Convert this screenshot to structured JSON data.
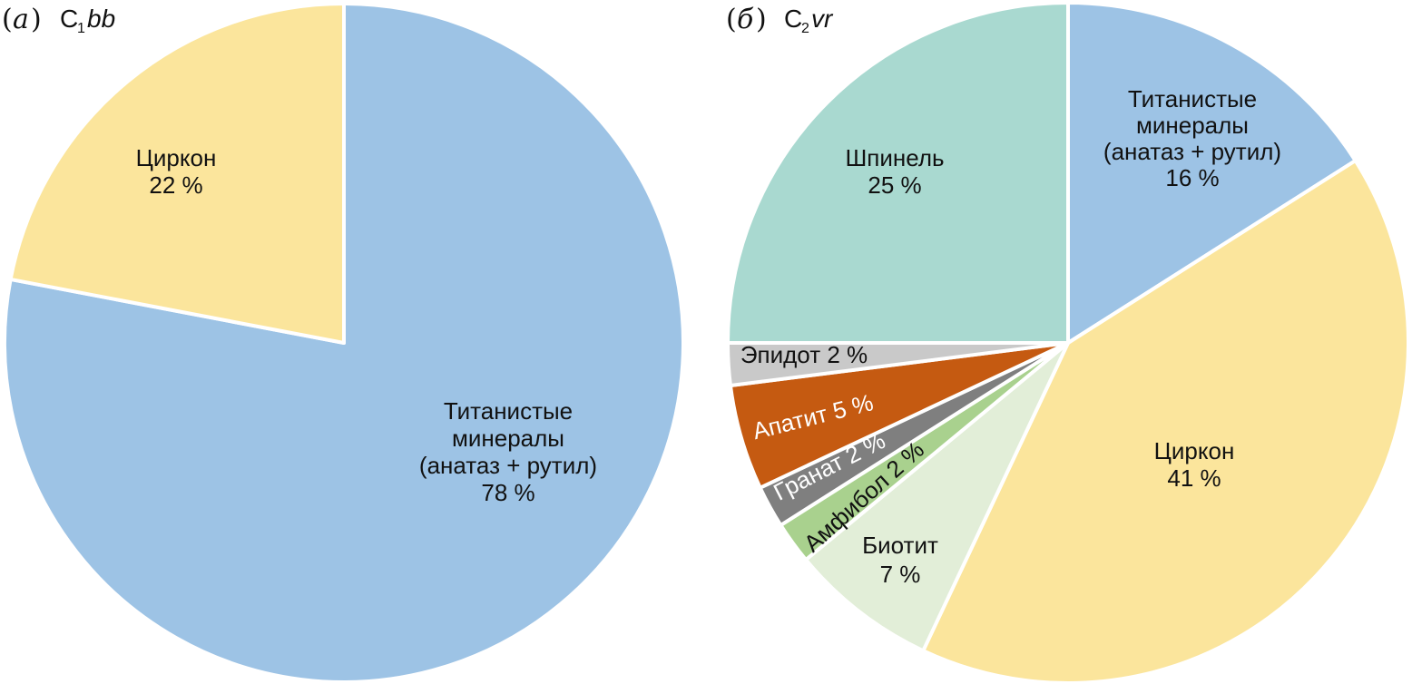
{
  "chart_data": [
    {
      "type": "pie",
      "panel": "а",
      "sample": {
        "base": "C",
        "sub": "1",
        "suffix": "bb"
      },
      "slices": [
        {
          "label": [
            "Титанистые",
            "минералы",
            "(анатаз + рутил)",
            "78 %"
          ],
          "value": 78,
          "color": "#9dc3e5"
        },
        {
          "label": [
            "Циркон",
            "22 %"
          ],
          "value": 22,
          "color": "#fbe59c"
        }
      ]
    },
    {
      "type": "pie",
      "panel": "б",
      "sample": {
        "base": "C",
        "sub": "2",
        "suffix": "vr"
      },
      "slices": [
        {
          "label": [
            "Титанистые",
            "минералы",
            "(анатаз + рутил)",
            "16 %"
          ],
          "value": 16,
          "color": "#9dc3e5"
        },
        {
          "label": [
            "Циркон",
            "41 %"
          ],
          "value": 41,
          "color": "#fbe59c"
        },
        {
          "label": [
            "Биотит",
            "7 %"
          ],
          "value": 7,
          "color": "#e2eed8"
        },
        {
          "label": [
            "Амфибол 2 %"
          ],
          "value": 2,
          "color": "#a9d18e"
        },
        {
          "label": [
            "Гранат 2 %"
          ],
          "value": 2,
          "color": "#7f7f7f",
          "label_color": "#ffffff"
        },
        {
          "label": [
            "Апатит 5 %"
          ],
          "value": 5,
          "color": "#c55a11",
          "label_color": "#ffffff"
        },
        {
          "label": [
            "Эпидот 2 %"
          ],
          "value": 2,
          "color": "#c9c9c9"
        },
        {
          "label": [
            "Шпинель",
            "25 %"
          ],
          "value": 25,
          "color": "#a9d9d0"
        }
      ]
    }
  ]
}
